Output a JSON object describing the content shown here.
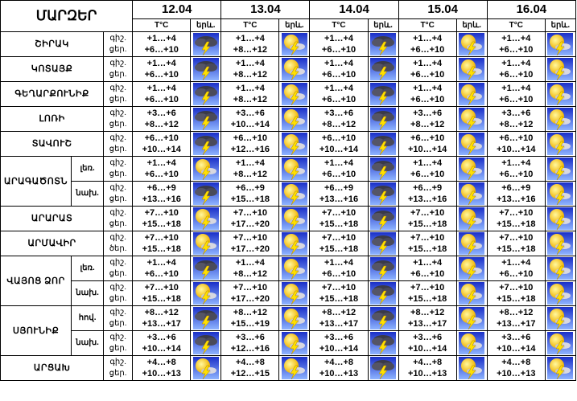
{
  "header": {
    "title": "ՄԱՐԶԵՐ",
    "dates": [
      "12.04",
      "13.04",
      "14.04",
      "15.04",
      "16.04"
    ],
    "temp_label": "T°C",
    "weather_label": "երև."
  },
  "regions": [
    {
      "name": "ՇԻՐԱԿ",
      "rows": [
        {
          "labels": [
            "գիշ.",
            "ցեր."
          ],
          "temps": [
            [
              "+1…+4",
              "+6…+10"
            ],
            [
              "+1…+4",
              "+8…+12"
            ],
            [
              "+1…+4",
              "+6…+10"
            ],
            [
              "+1…+4",
              "+6…+10"
            ],
            [
              "+1…+4",
              "+6…+10"
            ]
          ]
        }
      ]
    },
    {
      "name": "ԿՈՏԱՅՔ",
      "rows": [
        {
          "labels": [
            "գիշ.",
            "ցեր."
          ],
          "temps": [
            [
              "+1…+4",
              "+6…+10"
            ],
            [
              "+1…+4",
              "+8…+12"
            ],
            [
              "+1…+4",
              "+6…+10"
            ],
            [
              "+1…+4",
              "+6…+10"
            ],
            [
              "+1…+4",
              "+6…+10"
            ]
          ]
        }
      ]
    },
    {
      "name": "ԳԵՂԱՐՔՈՒՆԻՔ",
      "rows": [
        {
          "labels": [
            "գիշ.",
            "ցեր."
          ],
          "temps": [
            [
              "+1…+4",
              "+6…+10"
            ],
            [
              "+1…+4",
              "+8…+12"
            ],
            [
              "+1…+4",
              "+6…+10"
            ],
            [
              "+1…+4",
              "+6…+10"
            ],
            [
              "+1…+4",
              "+6…+10"
            ]
          ]
        }
      ]
    },
    {
      "name": "ԼՈՌԻ",
      "rows": [
        {
          "labels": [
            "գիշ.",
            "ցեր."
          ],
          "temps": [
            [
              "+3…+6",
              "+8…+12"
            ],
            [
              "+3…+6",
              "+10…+14"
            ],
            [
              "+3…+6",
              "+8…+12"
            ],
            [
              "+3…+6",
              "+8…+12"
            ],
            [
              "+3…+6",
              "+8…+12"
            ]
          ]
        }
      ]
    },
    {
      "name": "ՏԱՎՈՒՇ",
      "rows": [
        {
          "labels": [
            "գիշ.",
            "ցեր."
          ],
          "temps": [
            [
              "+6…+10",
              "+10…+14"
            ],
            [
              "+6…+10",
              "+12…+16"
            ],
            [
              "+6…+10",
              "+10…+14"
            ],
            [
              "+6…+10",
              "+10…+14"
            ],
            [
              "+6…+10",
              "+10…+14"
            ]
          ]
        }
      ]
    },
    {
      "name": "ԱՐԱԳԱԾՈՏՆ",
      "rows": [
        {
          "sub": "լեռ.",
          "labels": [
            "գիշ.",
            "ցեր."
          ],
          "temps": [
            [
              "+1…+4",
              "+6…+10"
            ],
            [
              "+1…+4",
              "+8…+12"
            ],
            [
              "+1…+4",
              "+6…+10"
            ],
            [
              "+1…+4",
              "+6…+10"
            ],
            [
              "+1…+4",
              "+6…+10"
            ]
          ]
        },
        {
          "sub": "նախ.",
          "labels": [
            "գիշ.",
            "ցեր."
          ],
          "temps": [
            [
              "+6…+9",
              "+13…+16"
            ],
            [
              "+6…+9",
              "+15…+18"
            ],
            [
              "+6…+9",
              "+13…+16"
            ],
            [
              "+6…+9",
              "+13…+16"
            ],
            [
              "+6…+9",
              "+13…+16"
            ]
          ]
        }
      ]
    },
    {
      "name": "ԱՐԱՐԱՏ",
      "rows": [
        {
          "labels": [
            "գիշ.",
            "ցեր."
          ],
          "temps": [
            [
              "+7…+10",
              "+15…+18"
            ],
            [
              "+7…+10",
              "+17…+20"
            ],
            [
              "+7…+10",
              "+15…+18"
            ],
            [
              "+7…+10",
              "+15…+18"
            ],
            [
              "+7…+10",
              "+15…+18"
            ]
          ]
        }
      ]
    },
    {
      "name": "ԱՐՄԱՎԻՐ",
      "rows": [
        {
          "labels": [
            "գիշ.",
            "ծեր."
          ],
          "temps": [
            [
              "+7…+10",
              "+15…+18"
            ],
            [
              "+7…+10",
              "+17…+20"
            ],
            [
              "+7…+10",
              "+15…+18"
            ],
            [
              "+7…+10",
              "+15…+18"
            ],
            [
              "+7…+10",
              "+15…+18"
            ]
          ]
        }
      ]
    },
    {
      "name": "ՎԱՅՈՑ ՁՈՐ",
      "rows": [
        {
          "sub": "լեռ.",
          "labels": [
            "գիշ.",
            "ցեր."
          ],
          "temps": [
            [
              "+1…+4",
              "+6…+10"
            ],
            [
              "+1…+4",
              "+8…+12"
            ],
            [
              "+1…+4",
              "+6…+10"
            ],
            [
              "+1…+4",
              "+6…+10"
            ],
            [
              "+1…+4",
              "+6…+10"
            ]
          ]
        },
        {
          "sub": "նախ.",
          "labels": [
            "գիշ.",
            "ցեր."
          ],
          "temps": [
            [
              "+7…+10",
              "+15…+18"
            ],
            [
              "+7…+10",
              "+17…+20"
            ],
            [
              "+7…+10",
              "+15…+18"
            ],
            [
              "+7…+10",
              "+15…+18"
            ],
            [
              "+7…+10",
              "+15…+18"
            ]
          ]
        }
      ]
    },
    {
      "name": "ՍՅՈՒՆԻՔ",
      "rows": [
        {
          "sub": "հով.",
          "labels": [
            "գիշ.",
            "ցեր."
          ],
          "temps": [
            [
              "+8…+12",
              "+13…+17"
            ],
            [
              "+8…+12",
              "+15…+19"
            ],
            [
              "+8…+12",
              "+13…+17"
            ],
            [
              "+8…+12",
              "+13…+17"
            ],
            [
              "+8…+12",
              "+13…+17"
            ]
          ]
        },
        {
          "sub": "նախ.",
          "labels": [
            "գիշ.",
            "ցեր."
          ],
          "temps": [
            [
              "+3…+6",
              "+10…+14"
            ],
            [
              "+3…+6",
              "+12…+16"
            ],
            [
              "+3…+6",
              "+10…+14"
            ],
            [
              "+3…+6",
              "+10…+14"
            ],
            [
              "+3…+6",
              "+10…+14"
            ]
          ]
        }
      ]
    },
    {
      "name": "ԱՐՑԱԽ",
      "rows": [
        {
          "labels": [
            "գիշ.",
            "ցեր."
          ],
          "temps": [
            [
              "+4…+8",
              "+10…+13"
            ],
            [
              "+4…+8",
              "+12…+15"
            ],
            [
              "+4…+8",
              "+10…+13"
            ],
            [
              "+4…+8",
              "+10…+13"
            ],
            [
              "+4…+8",
              "+10…+13"
            ]
          ]
        }
      ]
    }
  ]
}
